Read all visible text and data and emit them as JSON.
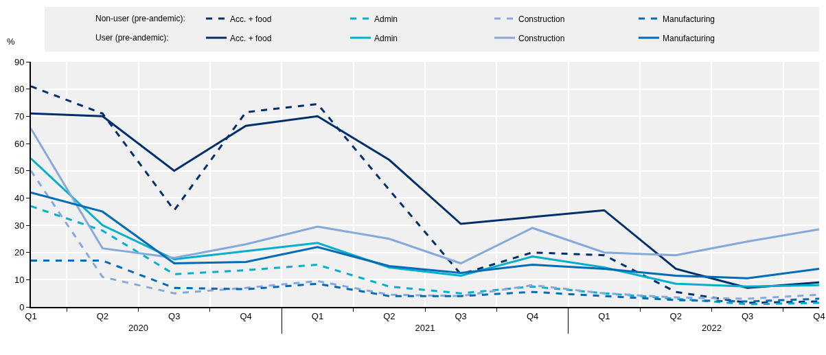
{
  "chart_data": {
    "type": "line",
    "ylabel": "%",
    "categories": [
      "Q1",
      "Q2",
      "Q3",
      "Q4",
      "Q1",
      "Q2",
      "Q3",
      "Q4",
      "Q1",
      "Q2",
      "Q3",
      "Q4"
    ],
    "annotations": [
      "Non-user (pre-andemic):",
      "User (pre-andemic):",
      "2020",
      "2021",
      "2022"
    ],
    "series": [
      {
        "name": "Acc. + food",
        "color": "#002f6c",
        "line_style": "dashed",
        "values": [
          81,
          71,
          35.5,
          71.5,
          74.5,
          43,
          12,
          20,
          19,
          5.5,
          1.5,
          2
        ]
      },
      {
        "name": "Admin",
        "color": "#00b0cc",
        "line_style": "dashed",
        "values": [
          37,
          28,
          12,
          13.5,
          15.5,
          7.5,
          5,
          7.5,
          5,
          3,
          1,
          1.5
        ]
      },
      {
        "name": "Construction",
        "color": "#86a9dc",
        "line_style": "dashed",
        "values": [
          50,
          11,
          5,
          7,
          9.5,
          4.5,
          4,
          8,
          5,
          3.5,
          3,
          4.5
        ]
      },
      {
        "name": "Manufacturing",
        "color": "#006bb6",
        "line_style": "dashed",
        "values": [
          17,
          17,
          7,
          6.5,
          8.5,
          4,
          4,
          5.5,
          4,
          2.5,
          2,
          3
        ]
      },
      {
        "name": "Acc. + food",
        "color": "#002f6c",
        "line_style": "solid",
        "values": [
          71,
          70,
          50,
          66.5,
          70,
          54,
          30.5,
          33,
          35.5,
          14,
          7,
          9
        ]
      },
      {
        "name": "Admin",
        "color": "#00b0cc",
        "line_style": "solid",
        "values": [
          54.5,
          30,
          17.5,
          20.5,
          23.5,
          14.5,
          11.5,
          18.5,
          14.5,
          8.5,
          7.5,
          8
        ]
      },
      {
        "name": "Construction",
        "color": "#86a9dc",
        "line_style": "solid",
        "values": [
          65.5,
          21.5,
          18,
          23,
          29.5,
          25,
          16,
          29,
          20,
          19,
          24,
          28.5
        ]
      },
      {
        "name": "Manufacturing",
        "color": "#006bb6",
        "line_style": "solid",
        "values": [
          42,
          35,
          16,
          16.5,
          22,
          15,
          12.5,
          15.5,
          14,
          11.5,
          10.5,
          14
        ]
      }
    ],
    "ylim": [
      0,
      90
    ],
    "yticks": [
      0,
      10,
      20,
      30,
      40,
      50,
      60,
      70,
      80,
      90
    ],
    "grid": true,
    "legend": "top",
    "marker": "none"
  }
}
